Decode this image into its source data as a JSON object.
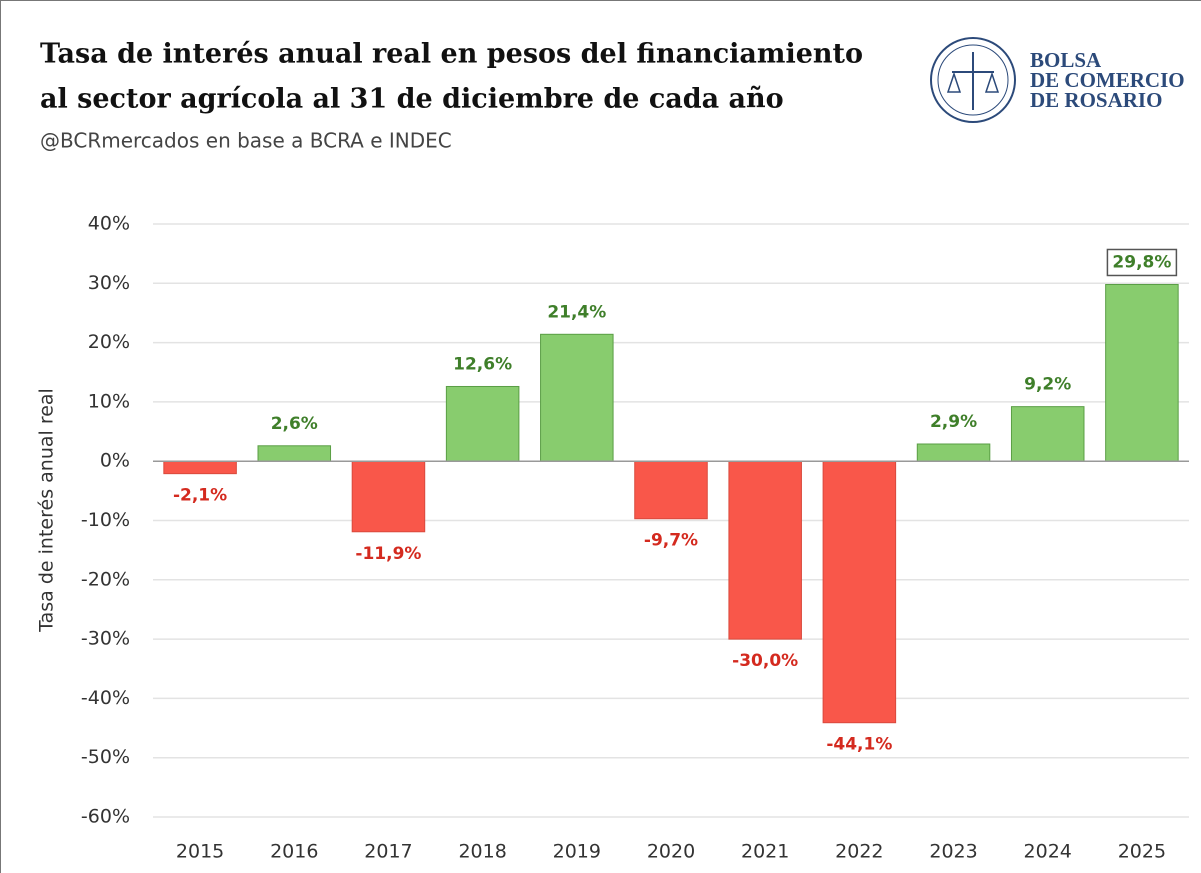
{
  "chart_data": {
    "type": "bar",
    "title": [
      "Tasa de interés anual real en pesos del financiamiento",
      "al sector agrícola al 31 de diciembre de cada año"
    ],
    "subtitle": "@BCRmercados  en base a BCRA e INDEC",
    "logo": [
      "BOLSA",
      "DE COMERCIO",
      "DE ROSARIO"
    ],
    "ylabel": "Tasa de interés anual real",
    "categories": [
      "2015",
      "2016",
      "2017",
      "2018",
      "2019",
      "2020",
      "2021",
      "2022",
      "2023",
      "2024",
      "2025"
    ],
    "values": [
      -2.1,
      2.6,
      -11.9,
      12.6,
      21.4,
      -9.7,
      -30.0,
      -44.1,
      2.9,
      9.2,
      29.8
    ],
    "value_labels": [
      "-2,1%",
      "2,6%",
      "-11,9%",
      "12,6%",
      "21,4%",
      "-9,7%",
      "-30,0%",
      "-44,1%",
      "2,9%",
      "9,2%",
      "29,8%"
    ],
    "colors": {
      "positive": "#88cc6e",
      "negative": "#f9574a"
    },
    "label_colors": {
      "positive": "#3f7f2a",
      "negative": "#d42a1f"
    },
    "highlight": "2025",
    "ylim": [
      -60,
      40
    ],
    "yticks": [
      {
        "value": -60,
        "label": "-60%"
      },
      {
        "value": -50,
        "label": "-50%"
      },
      {
        "value": -40,
        "label": "-40%"
      },
      {
        "value": -30,
        "label": "-30%"
      },
      {
        "value": -20,
        "label": "-20%"
      },
      {
        "value": -10,
        "label": "-10%"
      },
      {
        "value": 0,
        "label": "0%"
      },
      {
        "value": 10,
        "label": "10%"
      },
      {
        "value": 20,
        "label": "20%"
      },
      {
        "value": 30,
        "label": "30%"
      },
      {
        "value": 40,
        "label": "40%"
      }
    ],
    "grid": true
  }
}
